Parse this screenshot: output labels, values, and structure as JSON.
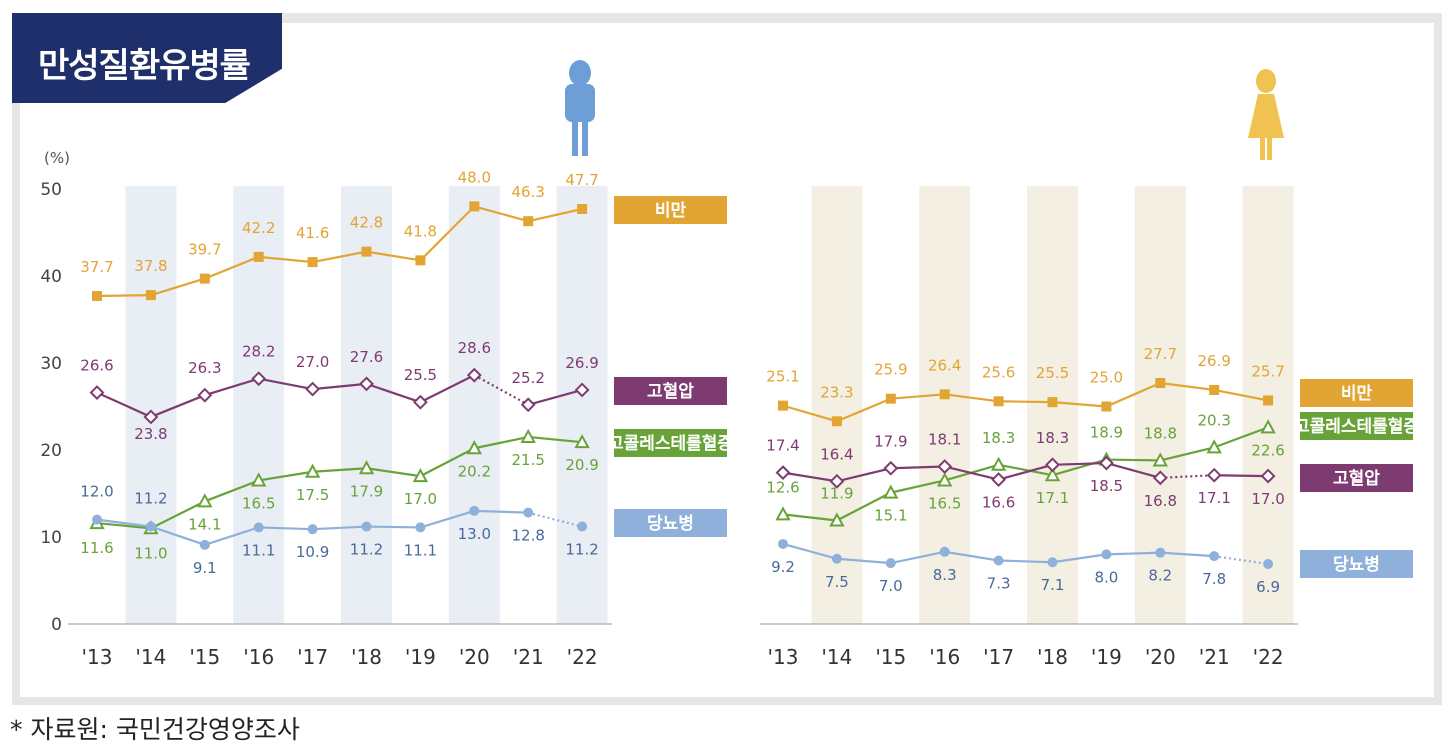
{
  "title": "만성질환유병률",
  "source_note": "* 자료원: 국민건강영양조사",
  "colors": {
    "obesity": "#e2a534",
    "hypertension": "#7d3b72",
    "hypercholesterolemia": "#68a33a",
    "diabetes": "#8fb0da",
    "male_band": "#e9edf4",
    "female_band": "#f3efe3",
    "male_icon": "#6d9fd6",
    "female_icon": "#efc252",
    "title_bg": "#1f2f6b"
  },
  "icons": {
    "male": "male-person-icon",
    "female": "female-person-icon"
  },
  "chart_data": [
    {
      "type": "line",
      "panel": "male",
      "ylabel": "(%)",
      "ylim": [
        0,
        50
      ],
      "yticks": [
        0,
        10,
        20,
        30,
        40,
        50
      ],
      "categories": [
        "'13",
        "'14",
        "'15",
        "'16",
        "'17",
        "'18",
        "'19",
        "'20",
        "'21",
        "'22"
      ],
      "shaded_categories": [
        "'14",
        "'16",
        "'18",
        "'20",
        "'22"
      ],
      "series": [
        {
          "key": "obesity",
          "name": "비만",
          "marker": "square",
          "dotted_last": false,
          "values": [
            37.7,
            37.8,
            39.7,
            42.2,
            41.6,
            42.8,
            41.8,
            48.0,
            46.3,
            47.7
          ],
          "labels": [
            "37.7",
            "37.8",
            "39.7",
            "42.2",
            "41.6",
            "42.8",
            "41.8",
            "48.0",
            "46.3",
            "47.7"
          ]
        },
        {
          "key": "hypertension",
          "name": "고혈압",
          "marker": "diamond",
          "dotted_last": true,
          "values": [
            26.6,
            23.8,
            26.3,
            28.2,
            27.0,
            27.6,
            25.5,
            28.6,
            25.2,
            26.9
          ],
          "labels": [
            "26.6",
            "23.8",
            "26.3",
            "28.2",
            "27.0",
            "27.6",
            "25.5",
            "28.6",
            "25.2",
            "26.9"
          ]
        },
        {
          "key": "hypercholesterolemia",
          "name": "고콜레스테롤혈증",
          "marker": "triangle",
          "dotted_last": false,
          "values": [
            11.6,
            11.0,
            14.1,
            16.5,
            17.5,
            17.9,
            17.0,
            20.2,
            21.5,
            20.9
          ],
          "labels": [
            "11.6",
            "11.0",
            "14.1",
            "16.5",
            "17.5",
            "17.9",
            "17.0",
            "20.2",
            "21.5",
            "20.9"
          ]
        },
        {
          "key": "diabetes",
          "name": "당뇨병",
          "marker": "circle",
          "dotted_last": true,
          "values": [
            12.0,
            11.2,
            9.1,
            11.1,
            10.9,
            11.2,
            11.1,
            13.0,
            12.8,
            11.2
          ],
          "labels": [
            "12.0",
            "11.2",
            "9.1",
            "11.1",
            "10.9",
            "11.2",
            "11.1",
            "13.0",
            "12.8",
            "11.2"
          ]
        }
      ]
    },
    {
      "type": "line",
      "panel": "female",
      "ylim": [
        0,
        50
      ],
      "categories": [
        "'13",
        "'14",
        "'15",
        "'16",
        "'17",
        "'18",
        "'19",
        "'20",
        "'21",
        "'22"
      ],
      "shaded_categories": [
        "'14",
        "'16",
        "'18",
        "'20",
        "'22"
      ],
      "series": [
        {
          "key": "obesity",
          "name": "비만",
          "marker": "square",
          "dotted_last": false,
          "values": [
            25.1,
            23.3,
            25.9,
            26.4,
            25.6,
            25.5,
            25.0,
            27.7,
            26.9,
            25.7
          ],
          "labels": [
            "25.1",
            "23.3",
            "25.9",
            "26.4",
            "25.6",
            "25.5",
            "25.0",
            "27.7",
            "26.9",
            "25.7"
          ]
        },
        {
          "key": "hypercholesterolemia",
          "name": "고콜레스테롤혈증",
          "marker": "triangle",
          "dotted_last": false,
          "values": [
            12.6,
            11.9,
            15.1,
            16.5,
            18.3,
            17.1,
            18.9,
            18.8,
            20.3,
            22.6
          ],
          "labels": [
            "12.6",
            "11.9",
            "15.1",
            "16.5",
            "18.3",
            "17.1",
            "18.9",
            "18.8",
            "20.3",
            "22.6"
          ]
        },
        {
          "key": "hypertension",
          "name": "고혈압",
          "marker": "diamond",
          "dotted_last": true,
          "values": [
            17.4,
            16.4,
            17.9,
            18.1,
            16.6,
            18.3,
            18.5,
            16.8,
            17.1,
            17.0
          ],
          "labels": [
            "17.4",
            "16.4",
            "17.9",
            "18.1",
            "16.6",
            "18.3",
            "18.5",
            "16.8",
            "17.1",
            "17.0"
          ]
        },
        {
          "key": "diabetes",
          "name": "당뇨병",
          "marker": "circle",
          "dotted_last": true,
          "values": [
            9.2,
            7.5,
            7.0,
            8.3,
            7.3,
            7.1,
            8.0,
            8.2,
            7.8,
            6.9
          ],
          "labels": [
            "9.2",
            "7.5",
            "7.0",
            "8.3",
            "7.3",
            "7.1",
            "8.0",
            "8.2",
            "7.8",
            "6.9"
          ]
        }
      ]
    }
  ]
}
